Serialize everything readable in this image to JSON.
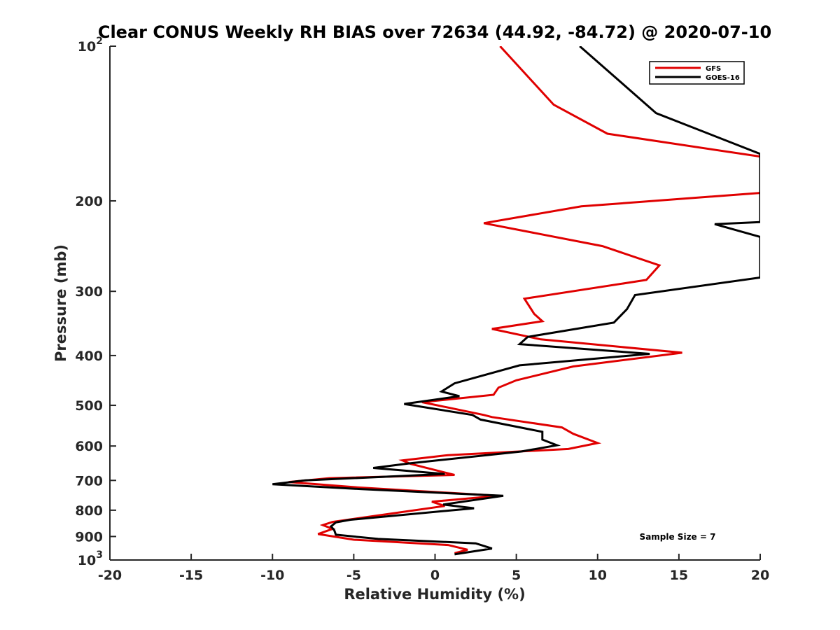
{
  "chart_data": {
    "type": "line",
    "title": "Clear CONUS Weekly RH BIAS over 72634 (44.92, -84.72) @ 2020-07-10",
    "xlabel": "Relative Humidity (%)",
    "ylabel": "Pressure (mb)",
    "xlim": [
      -20,
      20
    ],
    "ylim": [
      100,
      1000
    ],
    "yscale": "log",
    "y_reversed": true,
    "x_ticks": [
      -20,
      -15,
      -10,
      -5,
      0,
      5,
      10,
      15,
      20
    ],
    "x_tick_labels": [
      "-20",
      "-15",
      "-10",
      "-5",
      "0",
      "5",
      "10",
      "15",
      "20"
    ],
    "y_ticks": [
      100,
      200,
      300,
      400,
      500,
      600,
      700,
      800,
      900,
      1000
    ],
    "y_tick_labels": [
      {
        "base": "10",
        "exp": "2"
      },
      {
        "base": "200",
        "exp": ""
      },
      {
        "base": "300",
        "exp": ""
      },
      {
        "base": "400",
        "exp": ""
      },
      {
        "base": "500",
        "exp": ""
      },
      {
        "base": "600",
        "exp": ""
      },
      {
        "base": "700",
        "exp": ""
      },
      {
        "base": "800",
        "exp": ""
      },
      {
        "base": "900",
        "exp": ""
      },
      {
        "base": "10",
        "exp": "3"
      }
    ],
    "grid": false,
    "legend_position": "top-right",
    "annotation": "Sample Size = 7",
    "series": [
      {
        "name": "GFS",
        "color": "#e00000",
        "points": [
          [
            1.2,
            970
          ],
          [
            2.0,
            955
          ],
          [
            0.8,
            935
          ],
          [
            -5.0,
            913
          ],
          [
            -7.2,
            890
          ],
          [
            -6.3,
            870
          ],
          [
            -6.9,
            855
          ],
          [
            -6.3,
            843
          ],
          [
            -4.8,
            830
          ],
          [
            0.6,
            785
          ],
          [
            -0.2,
            770
          ],
          [
            3.9,
            750
          ],
          [
            -4.8,
            722
          ],
          [
            -9.0,
            705
          ],
          [
            -6.5,
            693
          ],
          [
            1.2,
            683
          ],
          [
            -1.5,
            650
          ],
          [
            -2.0,
            640
          ],
          [
            0.8,
            625
          ],
          [
            8.2,
            608
          ],
          [
            10.0,
            592
          ],
          [
            8.5,
            568
          ],
          [
            7.8,
            552
          ],
          [
            3.5,
            527
          ],
          [
            3.0,
            522
          ],
          [
            -0.8,
            493
          ],
          [
            3.6,
            477
          ],
          [
            3.9,
            462
          ],
          [
            5.0,
            447
          ],
          [
            8.5,
            420
          ],
          [
            15.2,
            395
          ],
          [
            6.5,
            372
          ],
          [
            3.5,
            355
          ],
          [
            6.6,
            343
          ],
          [
            6.1,
            332
          ],
          [
            5.5,
            310
          ],
          [
            13.0,
            285
          ],
          [
            13.8,
            267
          ],
          [
            10.3,
            245
          ],
          [
            3.0,
            221
          ],
          [
            9.0,
            205
          ],
          [
            20.0,
            193
          ],
          [
            20.0,
            164
          ],
          [
            10.6,
            148
          ],
          [
            7.3,
            130
          ],
          [
            4.0,
            100
          ]
        ]
      },
      {
        "name": "GOES-16",
        "color": "#000000",
        "points": [
          [
            1.2,
            975
          ],
          [
            3.5,
            950
          ],
          [
            2.5,
            928
          ],
          [
            -3.5,
            910
          ],
          [
            -6.1,
            893
          ],
          [
            -6.2,
            875
          ],
          [
            -6.4,
            860
          ],
          [
            -6.1,
            845
          ],
          [
            -5.2,
            835
          ],
          [
            2.4,
            793
          ],
          [
            0.5,
            780
          ],
          [
            4.2,
            750
          ],
          [
            -4.5,
            728
          ],
          [
            -10.0,
            712
          ],
          [
            -8.0,
            700
          ],
          [
            0.6,
            680
          ],
          [
            -3.8,
            662
          ],
          [
            -1.5,
            648
          ],
          [
            5.3,
            615
          ],
          [
            7.5,
            598
          ],
          [
            6.6,
            583
          ],
          [
            6.6,
            563
          ],
          [
            2.8,
            533
          ],
          [
            2.3,
            522
          ],
          [
            -1.9,
            497
          ],
          [
            1.5,
            480
          ],
          [
            0.4,
            470
          ],
          [
            1.2,
            453
          ],
          [
            5.2,
            418
          ],
          [
            13.2,
            397
          ],
          [
            5.2,
            380
          ],
          [
            5.7,
            368
          ],
          [
            11.0,
            345
          ],
          [
            11.8,
            325
          ],
          [
            12.3,
            305
          ],
          [
            20.0,
            282
          ],
          [
            20.0,
            235
          ],
          [
            17.2,
            222
          ],
          [
            20.0,
            220
          ],
          [
            20.0,
            162
          ],
          [
            13.6,
            135
          ],
          [
            8.9,
            100
          ]
        ]
      }
    ]
  }
}
